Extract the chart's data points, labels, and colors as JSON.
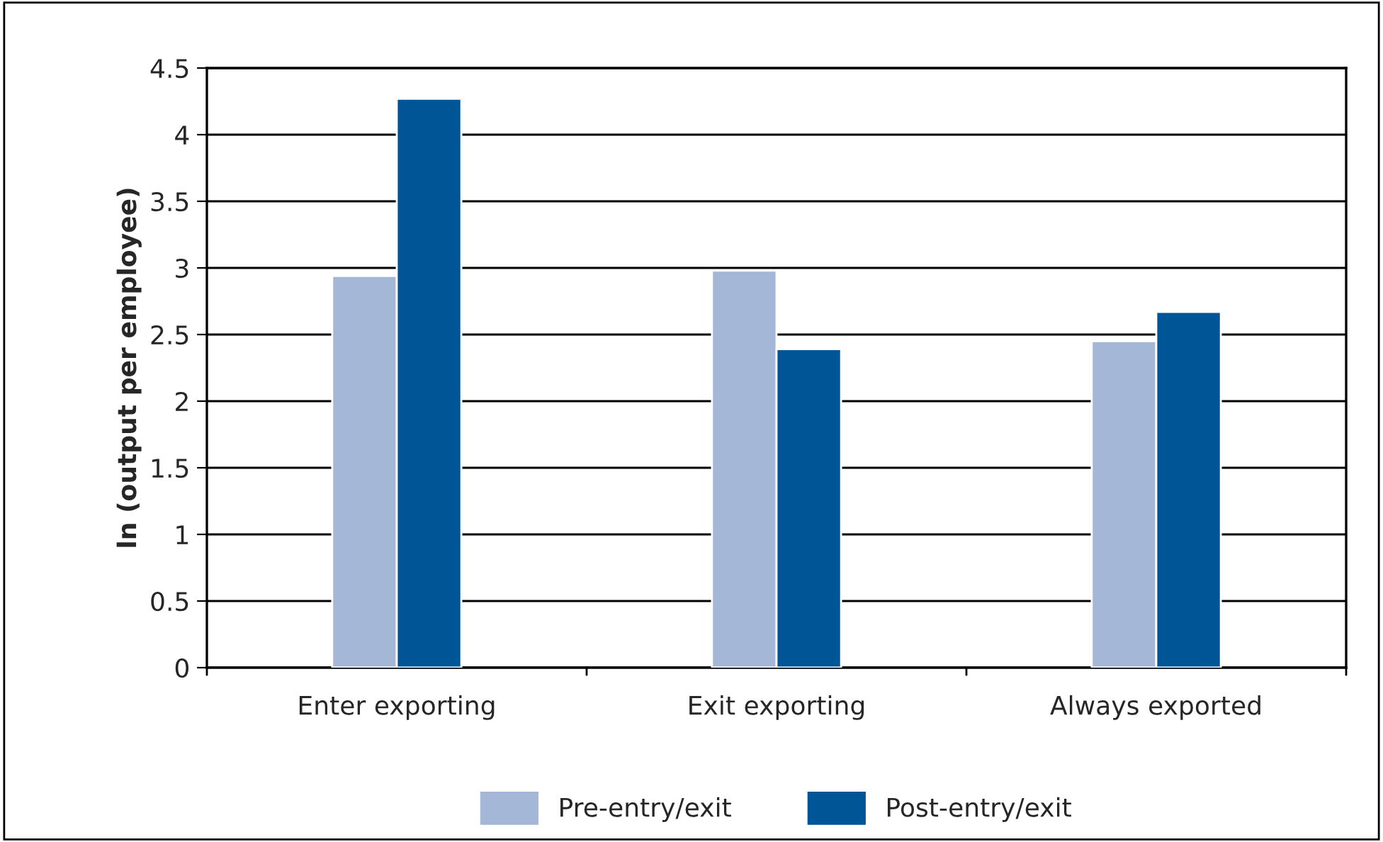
{
  "chart_data": {
    "type": "bar",
    "ylabel": "ln (output per employee)",
    "categories": [
      "Enter exporting",
      "Exit exporting",
      "Always exported"
    ],
    "series": [
      {
        "name": "Pre-entry/exit",
        "color": "#a5b7d7",
        "values": [
          2.94,
          2.98,
          2.45
        ]
      },
      {
        "name": "Post-entry/exit",
        "color": "#005596",
        "values": [
          4.27,
          2.39,
          2.67
        ]
      }
    ],
    "ylim": [
      0,
      4.5
    ],
    "yticks": [
      0,
      0.5,
      1,
      1.5,
      2,
      2.5,
      3,
      3.5,
      4,
      4.5
    ],
    "grid": "y",
    "legend": "bottom"
  }
}
